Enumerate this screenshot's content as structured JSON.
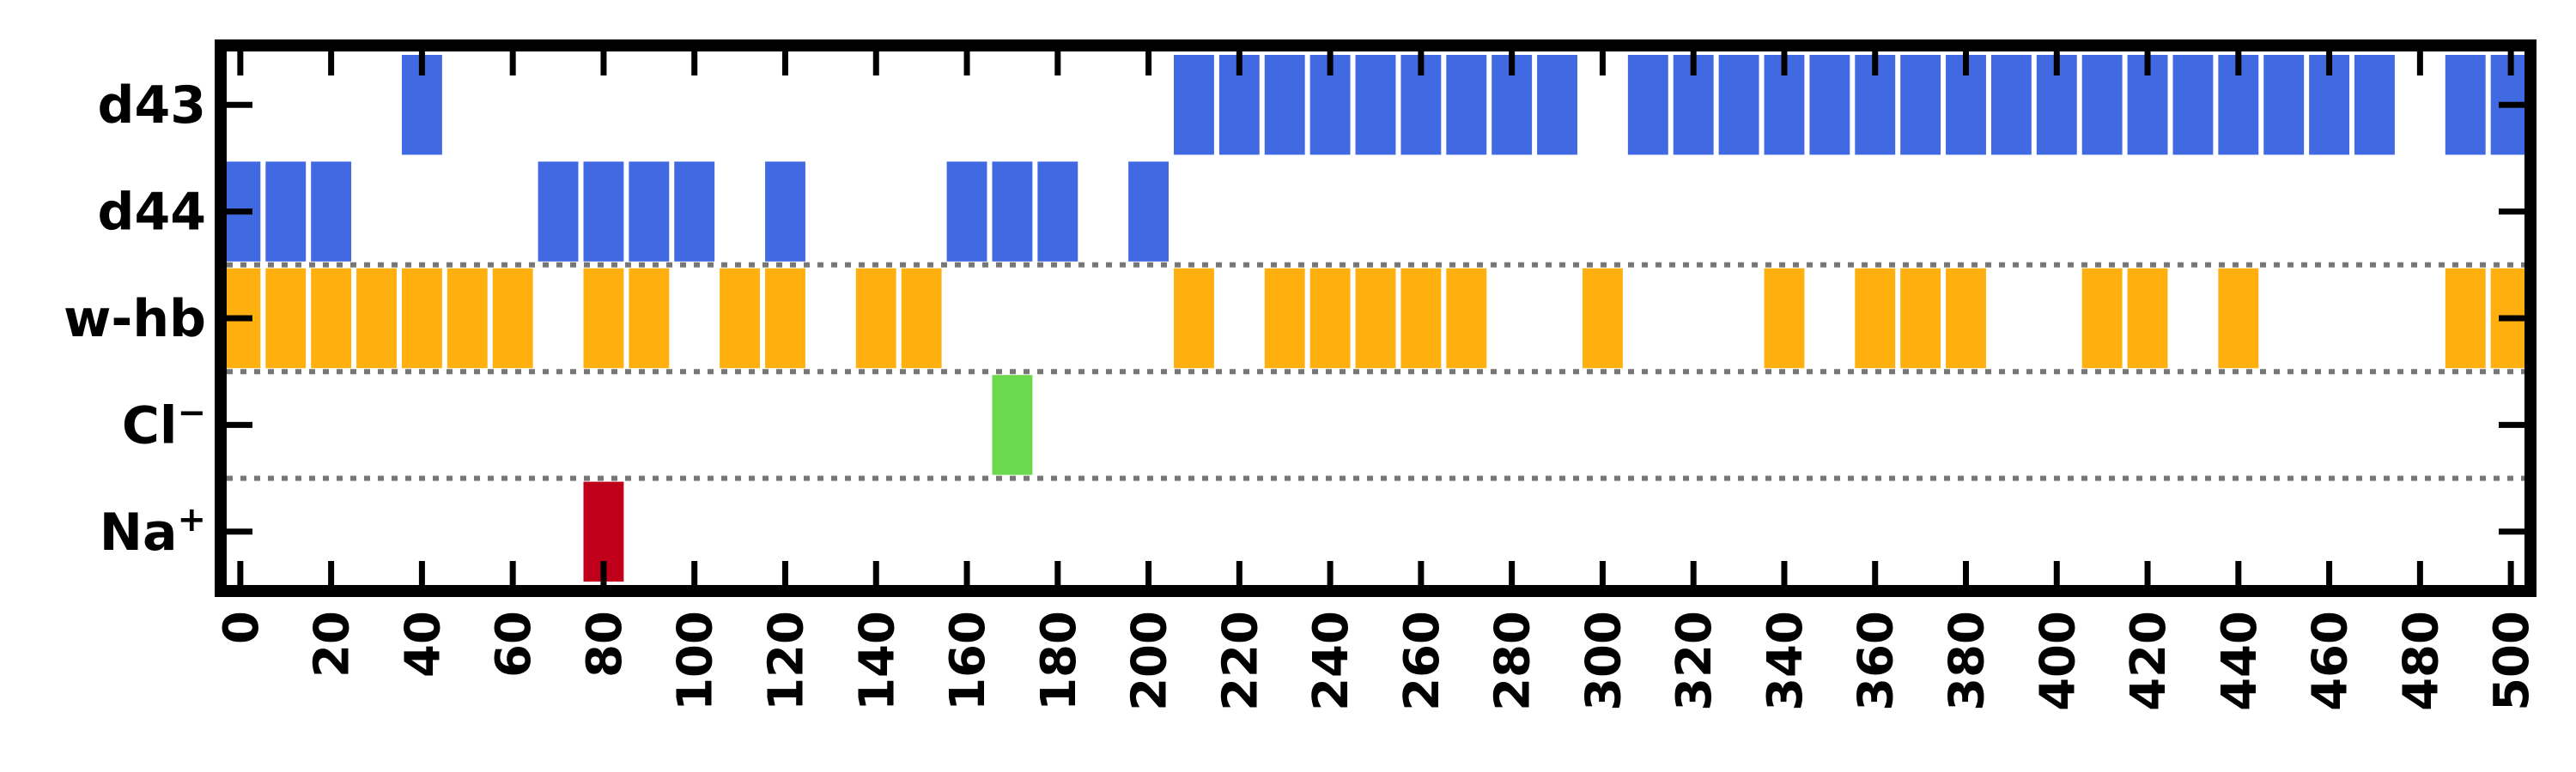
{
  "chart_data": {
    "type": "event-raster",
    "x_ticks": [
      0,
      20,
      40,
      60,
      80,
      100,
      120,
      140,
      160,
      180,
      200,
      220,
      240,
      260,
      280,
      300,
      320,
      340,
      360,
      380,
      400,
      420,
      440,
      460,
      480,
      500
    ],
    "xlim": [
      -3,
      503
    ],
    "bin_width": 10,
    "grid": false,
    "group_separators": "dotted",
    "rows": [
      {
        "label": "d43",
        "label_sup": "",
        "color": "#4169E1",
        "events": [
          40,
          210,
          220,
          230,
          240,
          250,
          260,
          270,
          280,
          290,
          310,
          320,
          330,
          340,
          350,
          360,
          370,
          380,
          390,
          400,
          410,
          420,
          430,
          440,
          450,
          460,
          470,
          490,
          500
        ]
      },
      {
        "label": "d44",
        "label_sup": "",
        "color": "#4169E1",
        "events": [
          0,
          10,
          20,
          70,
          80,
          90,
          100,
          120,
          160,
          170,
          180,
          200
        ]
      },
      {
        "label": "w-hb",
        "label_sup": "",
        "color": "#FFB00F",
        "events": [
          0,
          10,
          20,
          30,
          40,
          50,
          60,
          80,
          90,
          110,
          120,
          140,
          150,
          210,
          230,
          240,
          250,
          260,
          270,
          300,
          340,
          360,
          370,
          380,
          410,
          420,
          440,
          490,
          500
        ]
      },
      {
        "label": "Cl",
        "label_sup": "−",
        "color": "#6AD94E",
        "events": [
          170
        ]
      },
      {
        "label": "Na",
        "label_sup": "+",
        "color": "#C0001A",
        "events": [
          80
        ]
      }
    ]
  }
}
